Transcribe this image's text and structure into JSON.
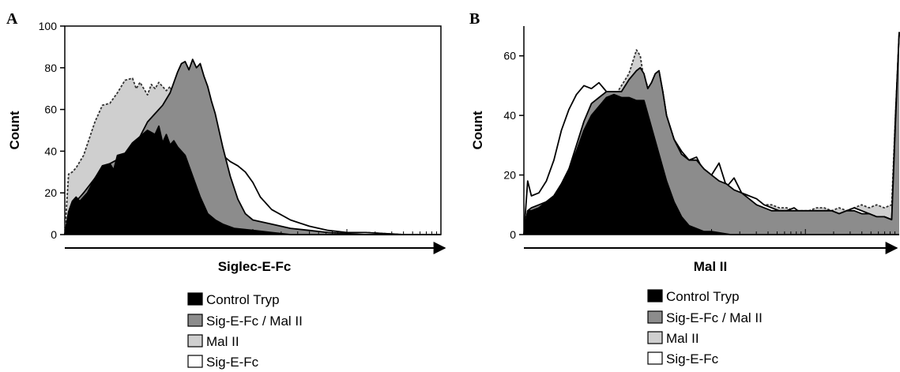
{
  "panels": [
    {
      "letter": "A",
      "xlabel": "Siglec-E-Fc",
      "ylabel": "Count",
      "legend": [
        {
          "label": "Control Tryp",
          "color": "#000000"
        },
        {
          "label": "Sig-E-Fc / Mal II",
          "color": "#8c8c8c"
        },
        {
          "label": "Mal II",
          "color": "#cfcfcf"
        },
        {
          "label": "Sig-E-Fc",
          "color": "#ffffff"
        }
      ]
    },
    {
      "letter": "B",
      "xlabel": "Mal II",
      "ylabel": "Count",
      "legend": [
        {
          "label": "Control Tryp",
          "color": "#000000"
        },
        {
          "label": "Sig-E-Fc / Mal II",
          "color": "#8c8c8c"
        },
        {
          "label": "Mal II",
          "color": "#cfcfcf"
        },
        {
          "label": "Sig-E-Fc",
          "color": "#ffffff"
        }
      ]
    }
  ],
  "chart_data": [
    {
      "type": "area",
      "xlabel": "Siglec-E-Fc",
      "ylabel": "Count",
      "xlim": [
        0,
        100
      ],
      "ylim": [
        0,
        100
      ],
      "yticks": [
        0,
        20,
        40,
        60,
        80,
        100
      ],
      "x_scale": "log (fluorescence intensity, unlabeled)",
      "series": [
        {
          "name": "Mal II",
          "fill": "#cfcfcf",
          "stroke": "#333333",
          "dash": "3,2",
          "order": 0,
          "x": [
            0,
            1,
            2,
            3,
            5,
            8,
            10,
            12,
            14,
            16,
            18,
            19,
            20,
            22,
            23,
            24,
            25,
            27,
            28,
            30,
            32,
            34,
            36,
            38,
            40,
            42,
            45,
            50,
            55,
            60,
            65,
            70,
            80,
            90,
            100
          ],
          "y": [
            0,
            29,
            30,
            32,
            38,
            54,
            62,
            63,
            68,
            74,
            75,
            70,
            73,
            67,
            72,
            70,
            73,
            69,
            71,
            60,
            55,
            52,
            44,
            32,
            22,
            15,
            10,
            7,
            4,
            3,
            2,
            1,
            1,
            0,
            0
          ]
        },
        {
          "name": "Sig-E-Fc",
          "fill": "#ffffff",
          "stroke": "#000000",
          "dash": "",
          "order": 1,
          "x": [
            0,
            1,
            2,
            3,
            5,
            8,
            10,
            12,
            14,
            16,
            18,
            20,
            22,
            24,
            26,
            28,
            30,
            31,
            32,
            33,
            34,
            35,
            36,
            37,
            38,
            40,
            42,
            44,
            46,
            48,
            50,
            52,
            55,
            60,
            65,
            70,
            75,
            80,
            90,
            100
          ],
          "y": [
            0,
            10,
            12,
            15,
            20,
            24,
            28,
            31,
            33,
            36,
            38,
            40,
            43,
            46,
            50,
            55,
            63,
            70,
            72,
            73,
            70,
            66,
            61,
            55,
            48,
            42,
            38,
            35,
            33,
            30,
            25,
            18,
            12,
            7,
            4,
            2,
            1,
            1,
            0,
            0
          ]
        },
        {
          "name": "Sig-E-Fc / Mal II",
          "fill": "#8c8c8c",
          "stroke": "#000000",
          "dash": "",
          "order": 2,
          "x": [
            0,
            1,
            2,
            3,
            5,
            8,
            10,
            12,
            14,
            16,
            18,
            20,
            22,
            24,
            26,
            28,
            30,
            31,
            32,
            33,
            34,
            35,
            36,
            37,
            38,
            39,
            40,
            42,
            44,
            46,
            48,
            50,
            55,
            60,
            65,
            70,
            80,
            90,
            100
          ],
          "y": [
            0,
            10,
            13,
            16,
            20,
            27,
            32,
            34,
            36,
            38,
            40,
            47,
            54,
            58,
            62,
            68,
            78,
            82,
            83,
            79,
            84,
            80,
            82,
            76,
            71,
            64,
            58,
            42,
            28,
            17,
            10,
            7,
            5,
            3,
            2,
            1,
            0,
            0,
            0
          ]
        },
        {
          "name": "Control Tryp",
          "fill": "#000000",
          "stroke": "#000000",
          "dash": "",
          "order": 3,
          "x": [
            0,
            1,
            2,
            3,
            4,
            5,
            6,
            8,
            10,
            12,
            13,
            14,
            16,
            18,
            20,
            22,
            24,
            25,
            26,
            27,
            28,
            29,
            30,
            32,
            34,
            36,
            38,
            40,
            42,
            45,
            50,
            55,
            60,
            70,
            80,
            90,
            100
          ],
          "y": [
            0,
            11,
            16,
            18,
            16,
            18,
            20,
            27,
            33,
            34,
            31,
            38,
            39,
            44,
            47,
            50,
            48,
            52,
            44,
            48,
            43,
            45,
            42,
            38,
            28,
            18,
            10,
            7,
            5,
            3,
            2,
            1,
            0,
            0,
            0,
            0,
            0
          ]
        }
      ]
    },
    {
      "type": "area",
      "xlabel": "Mal II",
      "ylabel": "Count",
      "xlim": [
        0,
        100
      ],
      "ylim": [
        0,
        70
      ],
      "yticks": [
        0,
        20,
        40,
        60
      ],
      "x_scale": "log (fluorescence intensity, unlabeled)",
      "series": [
        {
          "name": "Mal II",
          "fill": "#cfcfcf",
          "stroke": "#333333",
          "dash": "3,2",
          "order": 0,
          "x": [
            0,
            1,
            2,
            4,
            6,
            8,
            10,
            12,
            14,
            16,
            18,
            20,
            22,
            24,
            26,
            28,
            30,
            31,
            32,
            33,
            34,
            35,
            36,
            37,
            38,
            40,
            42,
            44,
            46,
            48,
            50,
            52,
            54,
            56,
            58,
            60,
            62,
            64,
            66,
            68,
            70,
            72,
            74,
            76,
            78,
            80,
            82,
            84,
            86,
            88,
            90,
            92,
            94,
            96,
            98,
            99,
            100
          ],
          "y": [
            0,
            8,
            9,
            10,
            11,
            13,
            17,
            22,
            30,
            38,
            44,
            46,
            47,
            46,
            50,
            54,
            62,
            60,
            52,
            50,
            48,
            53,
            54,
            48,
            40,
            32,
            26,
            25,
            25,
            22,
            20,
            18,
            17,
            15,
            14,
            13,
            11,
            10,
            10,
            9,
            9,
            8,
            8,
            8,
            9,
            9,
            8,
            9,
            8,
            9,
            10,
            9,
            10,
            9,
            10,
            40,
            68
          ]
        },
        {
          "name": "Sig-E-Fc",
          "fill": "#ffffff",
          "stroke": "#000000",
          "dash": "",
          "order": 1,
          "x": [
            0,
            1,
            2,
            4,
            6,
            8,
            10,
            12,
            14,
            16,
            18,
            20,
            22,
            24,
            26,
            28,
            30,
            31,
            32,
            33,
            34,
            35,
            36,
            37,
            38,
            40,
            42,
            44,
            46,
            48,
            50,
            52,
            54,
            56,
            58,
            60,
            62,
            64,
            66,
            68,
            70,
            72,
            74,
            76,
            78,
            80,
            82,
            84,
            86,
            88,
            90,
            92,
            94,
            96,
            98,
            99,
            100
          ],
          "y": [
            0,
            18,
            13,
            14,
            18,
            25,
            35,
            42,
            47,
            50,
            49,
            51,
            48,
            46,
            47,
            52,
            55,
            56,
            52,
            49,
            51,
            54,
            55,
            48,
            40,
            32,
            28,
            25,
            26,
            21,
            20,
            24,
            16,
            19,
            14,
            13,
            12,
            10,
            9,
            8,
            8,
            9,
            7,
            8,
            7,
            8,
            8,
            7,
            8,
            9,
            8,
            7,
            6,
            6,
            5,
            40,
            68
          ]
        },
        {
          "name": "Sig-E-Fc / Mal II",
          "fill": "#8c8c8c",
          "stroke": "#000000",
          "dash": "",
          "order": 2,
          "x": [
            0,
            1,
            2,
            4,
            6,
            8,
            10,
            12,
            14,
            16,
            18,
            20,
            22,
            24,
            26,
            28,
            30,
            31,
            32,
            33,
            34,
            35,
            36,
            37,
            38,
            40,
            42,
            44,
            46,
            48,
            50,
            52,
            54,
            56,
            58,
            60,
            62,
            64,
            66,
            68,
            70,
            72,
            74,
            76,
            78,
            80,
            82,
            84,
            86,
            88,
            90,
            92,
            94,
            96,
            98,
            99,
            100
          ],
          "y": [
            0,
            8,
            9,
            10,
            11,
            13,
            17,
            22,
            30,
            38,
            44,
            46,
            48,
            48,
            48,
            52,
            55,
            56,
            54,
            49,
            51,
            54,
            55,
            48,
            40,
            32,
            27,
            25,
            25,
            22,
            20,
            18,
            17,
            15,
            14,
            12,
            10,
            9,
            8,
            8,
            8,
            8,
            8,
            8,
            8,
            8,
            8,
            7,
            8,
            8,
            7,
            7,
            6,
            6,
            5,
            38,
            68
          ]
        },
        {
          "name": "Control Tryp",
          "fill": "#000000",
          "stroke": "#000000",
          "dash": "",
          "order": 3,
          "x": [
            0,
            1,
            2,
            4,
            6,
            8,
            10,
            12,
            14,
            16,
            18,
            20,
            22,
            24,
            26,
            28,
            30,
            32,
            34,
            36,
            38,
            40,
            42,
            44,
            46,
            48,
            50,
            55,
            60,
            70,
            80,
            90,
            100
          ],
          "y": [
            0,
            8,
            8,
            9,
            11,
            13,
            17,
            22,
            28,
            35,
            40,
            43,
            46,
            47,
            46,
            46,
            45,
            45,
            36,
            27,
            18,
            11,
            6,
            3,
            2,
            1,
            1,
            0,
            0,
            0,
            0,
            0,
            0
          ]
        }
      ]
    }
  ]
}
